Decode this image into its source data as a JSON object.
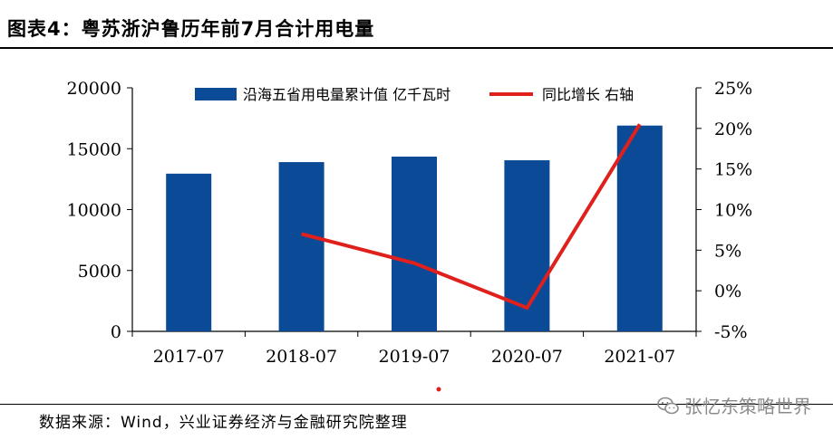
{
  "title": "图表4：粤苏浙沪鲁历年前7月合计用电量",
  "source": "数据来源：Wind，兴业证券经济与金融研究院整理",
  "watermark": "张忆东策略世界",
  "chart_data": {
    "type": "bar+line",
    "categories": [
      "2017-07",
      "2018-07",
      "2019-07",
      "2020-07",
      "2021-07"
    ],
    "series": [
      {
        "name": "沿海五省用电量累计值 亿千瓦时",
        "type": "bar",
        "axis": "left",
        "color": "#0a4a96",
        "values": [
          12950,
          13900,
          14350,
          14050,
          16900
        ]
      },
      {
        "name": "同比增长 右轴",
        "type": "line",
        "axis": "right",
        "color": "#e0201c",
        "values": [
          null,
          7.0,
          3.4,
          -2.1,
          20.5
        ]
      }
    ],
    "left_axis": {
      "ylim": [
        0,
        20000
      ],
      "ticks": [
        "0",
        "5000",
        "10000",
        "15000",
        "20000"
      ]
    },
    "right_axis": {
      "ylim": [
        -5,
        25
      ],
      "ticks": [
        "-5%",
        "0%",
        "5%",
        "10%",
        "15%",
        "20%",
        "25%"
      ]
    },
    "grid": false,
    "legend_position": "top-center"
  }
}
